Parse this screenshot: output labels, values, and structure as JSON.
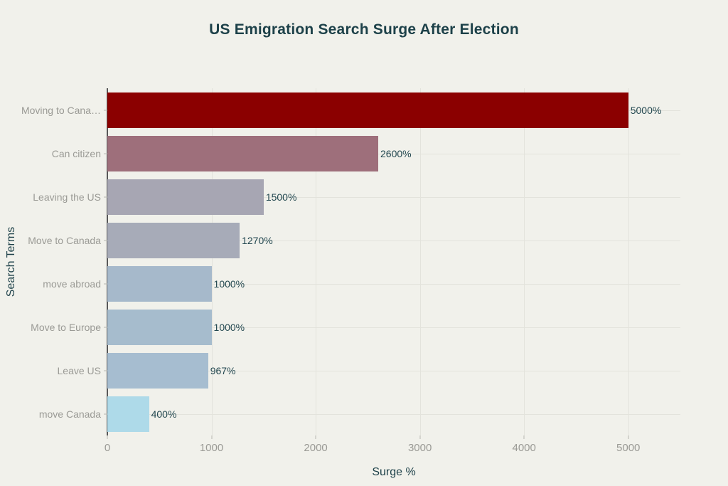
{
  "chart_data": {
    "type": "bar",
    "orientation": "horizontal",
    "title": "US Emigration Search Surge After Election",
    "xlabel": "Surge %",
    "ylabel": "Search Terms",
    "categories": [
      "Moving to Cana…",
      "Can citizen",
      "Leaving the US",
      "Move to Canada",
      "move abroad",
      "Move to Europe",
      "Leave US",
      "move Canada"
    ],
    "values": [
      5000,
      2600,
      1500,
      1270,
      1000,
      1000,
      967,
      400
    ],
    "value_labels": [
      "5000%",
      "2600%",
      "1500%",
      "1270%",
      "1000%",
      "1000%",
      "967%",
      "400%"
    ],
    "bar_colors": [
      "#8b0000",
      "#9e6f7b",
      "#a7a6b3",
      "#a7abb8",
      "#a6b9cb",
      "#a6bccd",
      "#a6bdd0",
      "#aedae9"
    ],
    "xlim": [
      0,
      5500
    ],
    "xticks": [
      0,
      1000,
      2000,
      3000,
      4000,
      5000
    ],
    "grid": true,
    "legend": false
  },
  "colors": {
    "background": "#f1f1eb",
    "title_text": "#1d4149",
    "tick_text": "#9a9a95",
    "gridline": "#e3e3dc",
    "zeroline": "#585858"
  }
}
